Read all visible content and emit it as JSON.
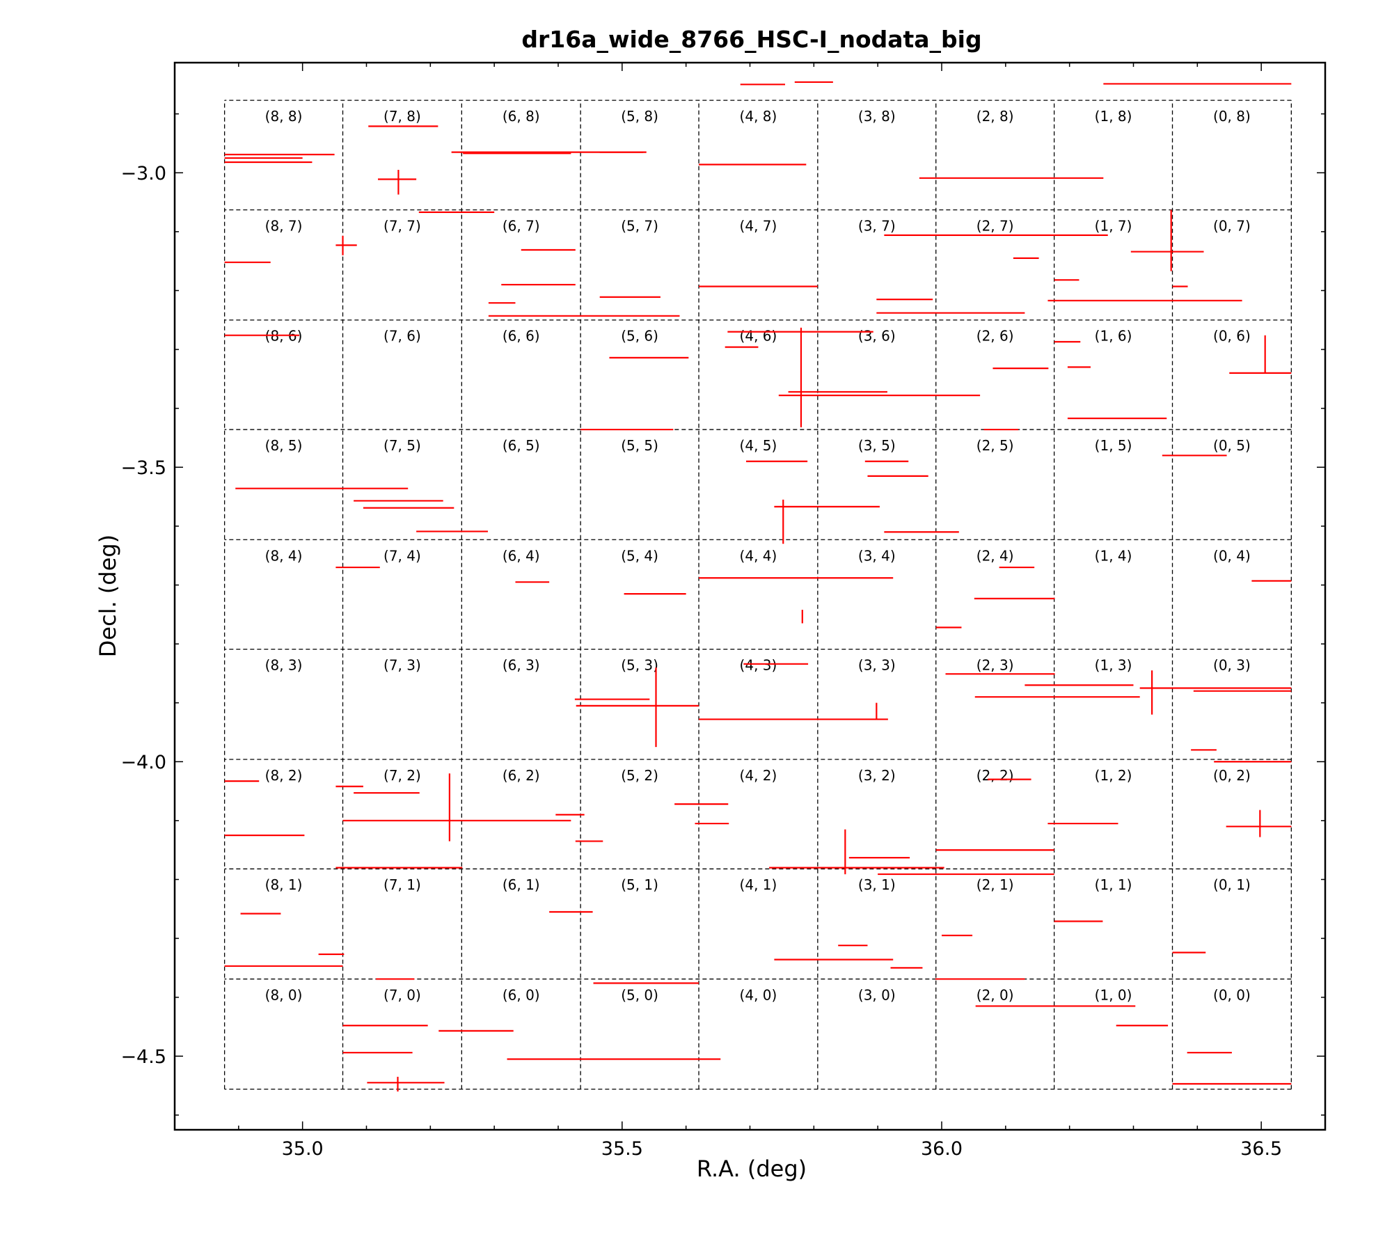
{
  "chart_data": {
    "type": "scatter",
    "title": "dr16a_wide_8766_HSC-I_nodata_big",
    "xlabel": "R.A.  (deg)",
    "ylabel": "Decl. (deg)",
    "xlim": [
      34.8,
      36.6
    ],
    "ylim": [
      -4.625,
      -2.813
    ],
    "x_ticks": [
      {
        "value": 35.0,
        "label": "35.0"
      },
      {
        "value": 35.5,
        "label": "35.5"
      },
      {
        "value": 36.0,
        "label": "36.0"
      },
      {
        "value": 36.5,
        "label": "36.5"
      }
    ],
    "y_ticks": [
      {
        "value": -3.0,
        "label": "−3.0"
      },
      {
        "value": -3.5,
        "label": "−3.5"
      },
      {
        "value": -4.0,
        "label": "−4.0"
      },
      {
        "value": -4.5,
        "label": "−4.5"
      }
    ],
    "x_minor_step": 0.1,
    "y_minor_step": 0.1,
    "grid": false,
    "patch_grid": {
      "ra_boundaries": [
        36.547,
        36.361,
        36.176,
        35.991,
        35.806,
        35.62,
        35.435,
        35.249,
        35.063,
        34.878
      ],
      "dec_boundaries": [
        -4.556,
        -4.369,
        -4.182,
        -3.996,
        -3.809,
        -3.623,
        -3.436,
        -3.25,
        -3.063,
        -2.877
      ],
      "labels": [
        [
          "(0, 0)",
          "(1, 0)",
          "(2, 0)",
          "(3, 0)",
          "(4, 0)",
          "(5, 0)",
          "(6, 0)",
          "(7, 0)",
          "(8, 0)"
        ],
        [
          "(0, 1)",
          "(1, 1)",
          "(2, 1)",
          "(3, 1)",
          "(4, 1)",
          "(5, 1)",
          "(6, 1)",
          "(7, 1)",
          "(8, 1)"
        ],
        [
          "(0, 2)",
          "(1, 2)",
          "(2, 2)",
          "(3, 2)",
          "(4, 2)",
          "(5, 2)",
          "(6, 2)",
          "(7, 2)",
          "(8, 2)"
        ],
        [
          "(0, 3)",
          "(1, 3)",
          "(2, 3)",
          "(3, 3)",
          "(4, 3)",
          "(5, 3)",
          "(6, 3)",
          "(7, 3)",
          "(8, 3)"
        ],
        [
          "(0, 4)",
          "(1, 4)",
          "(2, 4)",
          "(3, 4)",
          "(4, 4)",
          "(5, 4)",
          "(6, 4)",
          "(7, 4)",
          "(8, 4)"
        ],
        [
          "(0, 5)",
          "(1, 5)",
          "(2, 5)",
          "(3, 5)",
          "(4, 5)",
          "(5, 5)",
          "(6, 5)",
          "(7, 5)",
          "(8, 5)"
        ],
        [
          "(0, 6)",
          "(1, 6)",
          "(2, 6)",
          "(3, 6)",
          "(4, 6)",
          "(5, 6)",
          "(6, 6)",
          "(7, 6)",
          "(8, 6)"
        ],
        [
          "(0, 7)",
          "(1, 7)",
          "(2, 7)",
          "(3, 7)",
          "(4, 7)",
          "(5, 7)",
          "(6, 7)",
          "(7, 7)",
          "(8, 7)"
        ],
        [
          "(0, 8)",
          "(1, 8)",
          "(2, 8)",
          "(3, 8)",
          "(4, 8)",
          "(5, 8)",
          "(6, 8)",
          "(7, 8)",
          "(8, 8)"
        ]
      ]
    },
    "mask_color": "#ff0000",
    "grid_line_color": "#000000",
    "horizontal_mask_segments": [
      [
        34.878,
        35.05,
        -2.969
      ],
      [
        34.878,
        35.015,
        -2.982
      ],
      [
        34.878,
        35.0,
        -2.975
      ],
      [
        35.103,
        35.212,
        -2.921
      ],
      [
        35.118,
        35.178,
        -3.011
      ],
      [
        35.233,
        35.538,
        -2.965
      ],
      [
        35.251,
        35.42,
        -2.967
      ],
      [
        35.465,
        35.533,
        -2.965
      ],
      [
        35.62,
        35.788,
        -2.986
      ],
      [
        35.685,
        35.755,
        -2.85
      ],
      [
        35.77,
        35.83,
        -2.846
      ],
      [
        35.965,
        36.253,
        -3.009
      ],
      [
        36.253,
        36.547,
        -2.849
      ],
      [
        35.182,
        35.3,
        -3.067
      ],
      [
        34.878,
        34.95,
        -3.152
      ],
      [
        35.052,
        35.085,
        -3.123
      ],
      [
        35.342,
        35.427,
        -3.131
      ],
      [
        35.311,
        35.427,
        -3.19
      ],
      [
        35.291,
        35.333,
        -3.221
      ],
      [
        35.291,
        35.59,
        -3.243
      ],
      [
        35.465,
        35.56,
        -3.211
      ],
      [
        35.62,
        35.806,
        -3.193
      ],
      [
        35.898,
        35.986,
        -3.215
      ],
      [
        35.898,
        36.13,
        -3.238
      ],
      [
        35.91,
        36.26,
        -3.106
      ],
      [
        36.112,
        36.152,
        -3.145
      ],
      [
        36.296,
        36.41,
        -3.134
      ],
      [
        36.166,
        36.47,
        -3.217
      ],
      [
        36.176,
        36.215,
        -3.182
      ],
      [
        36.361,
        36.385,
        -3.193
      ],
      [
        34.878,
        34.995,
        -3.276
      ],
      [
        35.48,
        35.604,
        -3.314
      ],
      [
        35.661,
        35.713,
        -3.296
      ],
      [
        35.665,
        35.893,
        -3.27
      ],
      [
        35.745,
        36.06,
        -3.378
      ],
      [
        35.76,
        35.915,
        -3.372
      ],
      [
        36.176,
        36.217,
        -3.287
      ],
      [
        36.08,
        36.167,
        -3.332
      ],
      [
        36.197,
        36.352,
        -3.417
      ],
      [
        36.197,
        36.233,
        -3.33
      ],
      [
        36.45,
        36.547,
        -3.34
      ],
      [
        35.435,
        35.58,
        -3.436
      ],
      [
        36.066,
        36.12,
        -3.436
      ],
      [
        34.895,
        35.165,
        -3.536
      ],
      [
        35.08,
        35.22,
        -3.557
      ],
      [
        35.095,
        35.237,
        -3.569
      ],
      [
        35.178,
        35.29,
        -3.609
      ],
      [
        35.694,
        35.79,
        -3.49
      ],
      [
        35.88,
        35.948,
        -3.49
      ],
      [
        35.884,
        35.979,
        -3.515
      ],
      [
        35.738,
        35.903,
        -3.567
      ],
      [
        35.91,
        36.027,
        -3.61
      ],
      [
        36.345,
        36.446,
        -3.48
      ],
      [
        35.052,
        35.121,
        -3.67
      ],
      [
        35.333,
        35.386,
        -3.695
      ],
      [
        35.503,
        35.6,
        -3.715
      ],
      [
        35.62,
        35.924,
        -3.688
      ],
      [
        36.09,
        36.145,
        -3.67
      ],
      [
        36.051,
        36.177,
        -3.723
      ],
      [
        35.991,
        36.031,
        -3.772
      ],
      [
        36.485,
        36.547,
        -3.693
      ],
      [
        35.69,
        35.791,
        -3.834
      ],
      [
        35.426,
        35.543,
        -3.894
      ],
      [
        35.428,
        35.62,
        -3.905
      ],
      [
        35.62,
        35.916,
        -3.928
      ],
      [
        36.006,
        36.177,
        -3.851
      ],
      [
        36.052,
        36.31,
        -3.89
      ],
      [
        36.13,
        36.3,
        -3.87
      ],
      [
        36.31,
        36.547,
        -3.875
      ],
      [
        36.394,
        36.547,
        -3.88
      ],
      [
        36.39,
        36.43,
        -3.98
      ],
      [
        34.878,
        34.932,
        -4.033
      ],
      [
        35.052,
        35.095,
        -4.042
      ],
      [
        35.08,
        35.183,
        -4.053
      ],
      [
        35.063,
        35.42,
        -4.1
      ],
      [
        35.396,
        35.441,
        -4.09
      ],
      [
        35.427,
        35.47,
        -4.135
      ],
      [
        35.582,
        35.666,
        -4.072
      ],
      [
        35.614,
        35.667,
        -4.105
      ],
      [
        36.072,
        36.14,
        -4.03
      ],
      [
        34.878,
        35.003,
        -4.125
      ],
      [
        36.166,
        36.276,
        -4.105
      ],
      [
        36.445,
        36.547,
        -4.11
      ],
      [
        35.855,
        35.95,
        -4.163
      ],
      [
        35.73,
        36.004,
        -4.18
      ],
      [
        35.991,
        36.176,
        -4.15
      ],
      [
        35.9,
        36.176,
        -4.191
      ],
      [
        35.052,
        35.25,
        -4.18
      ],
      [
        36.426,
        36.547,
        -4.0
      ],
      [
        34.903,
        34.966,
        -4.258
      ],
      [
        35.386,
        35.454,
        -4.255
      ],
      [
        35.838,
        35.884,
        -4.312
      ],
      [
        35.738,
        35.924,
        -4.336
      ],
      [
        35.92,
        35.97,
        -4.35
      ],
      [
        36.0,
        36.048,
        -4.295
      ],
      [
        36.176,
        36.252,
        -4.271
      ],
      [
        36.361,
        36.413,
        -4.324
      ],
      [
        34.878,
        35.063,
        -4.347
      ],
      [
        35.025,
        35.065,
        -4.327
      ],
      [
        35.115,
        35.175,
        -4.369
      ],
      [
        35.99,
        36.13,
        -4.369
      ],
      [
        35.455,
        35.62,
        -4.376
      ],
      [
        35.063,
        35.196,
        -4.448
      ],
      [
        35.063,
        35.172,
        -4.494
      ],
      [
        35.101,
        35.222,
        -4.545
      ],
      [
        35.213,
        35.33,
        -4.457
      ],
      [
        35.32,
        35.654,
        -4.505
      ],
      [
        36.053,
        36.303,
        -4.415
      ],
      [
        36.273,
        36.354,
        -4.448
      ],
      [
        36.384,
        36.454,
        -4.494
      ],
      [
        36.361,
        36.547,
        -4.547
      ]
    ],
    "vertical_mask_segments": [
      [
        35.15,
        -3.037,
        -2.995
      ],
      [
        35.063,
        -3.14,
        -3.107
      ],
      [
        36.359,
        -3.167,
        -3.063
      ],
      [
        35.78,
        -3.432,
        -3.263
      ],
      [
        36.506,
        -3.34,
        -3.276
      ],
      [
        35.752,
        -3.63,
        -3.555
      ],
      [
        35.782,
        -3.765,
        -3.742
      ],
      [
        35.553,
        -3.975,
        -3.84
      ],
      [
        35.898,
        -3.928,
        -3.9
      ],
      [
        35.23,
        -4.135,
        -4.02
      ],
      [
        35.849,
        -4.191,
        -4.115
      ],
      [
        36.498,
        -4.128,
        -4.082
      ],
      [
        36.329,
        -3.92,
        -3.845
      ],
      [
        35.149,
        -4.56,
        -4.535
      ]
    ]
  }
}
